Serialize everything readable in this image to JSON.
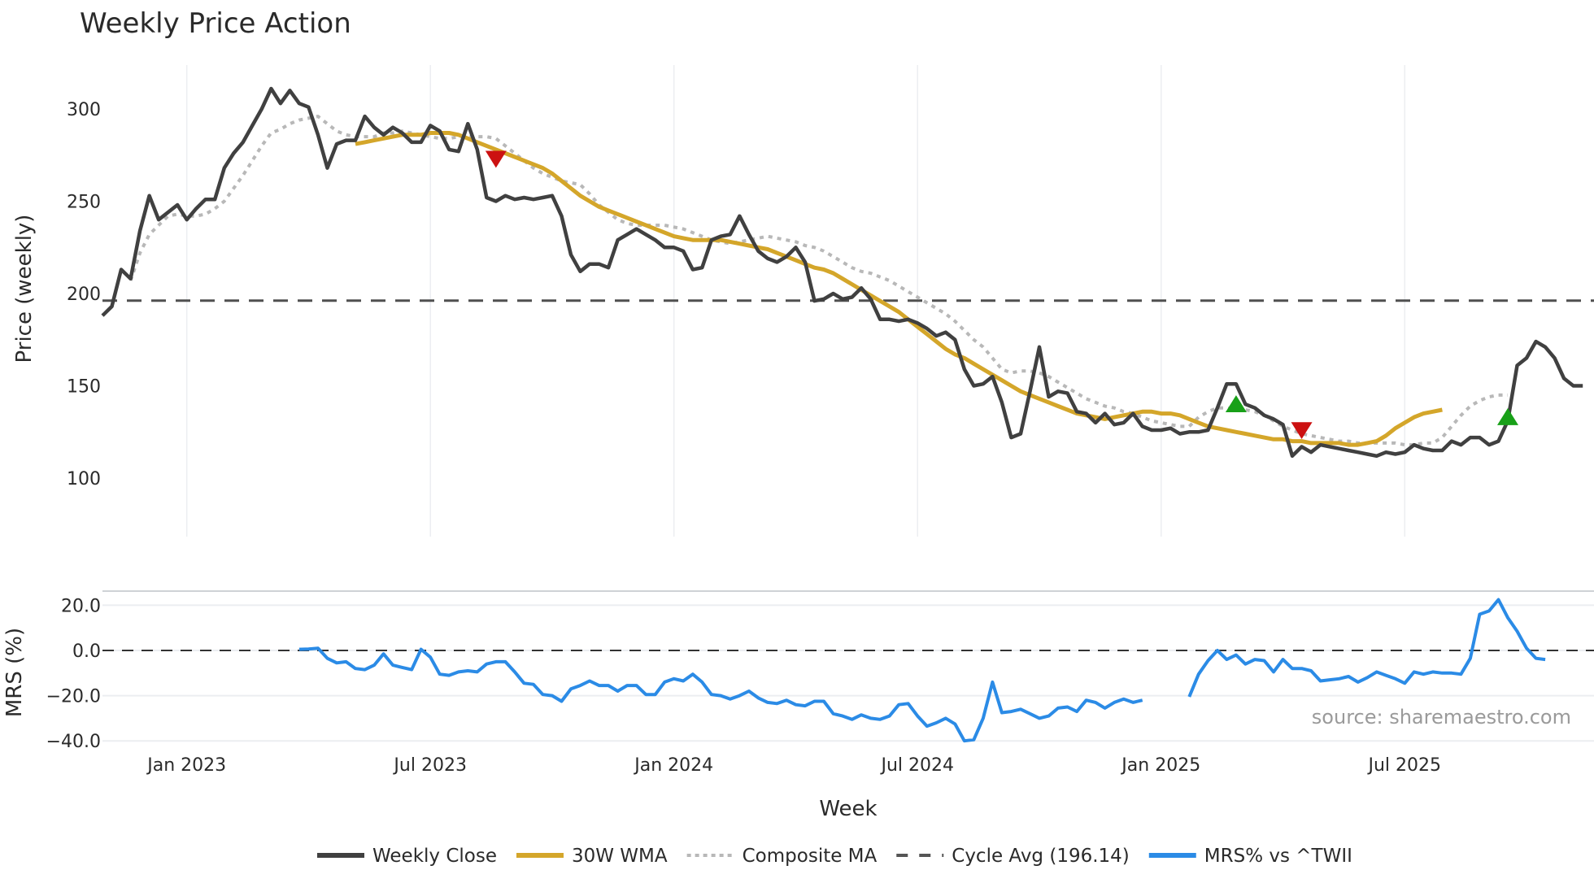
{
  "chart_data": {
    "type": "line",
    "title": "Weekly Price Action",
    "xlabel": "Week",
    "source_note": "source: sharemaestro.com",
    "x_ticks": [
      "Jan 2023",
      "Jul 2023",
      "Jan 2024",
      "Jul 2024",
      "Jan 2025",
      "Jul 2025"
    ],
    "panels": [
      {
        "name": "price",
        "ylabel": "Price (weekly)",
        "ylim": [
          100,
          320
        ],
        "y_ticks": [
          100,
          150,
          200,
          250,
          300
        ],
        "grid": true
      },
      {
        "name": "mrs",
        "ylabel": "MRS (%)",
        "ylim": [
          -42,
          27
        ],
        "y_ticks": [
          "20.0",
          "0.0",
          "−20.0",
          "−40.0"
        ],
        "y_tick_values": [
          20,
          0,
          -20,
          -40
        ],
        "grid": true
      }
    ],
    "x_start_week_offset": -9,
    "weeks_per_tick": 26,
    "series": [
      {
        "name": "Weekly Close",
        "panel": "price",
        "color": "#404040",
        "style": "solid",
        "start_index": 0,
        "values": [
          188,
          193,
          213,
          208,
          234,
          253,
          240,
          244,
          248,
          240,
          246,
          251,
          251,
          268,
          276,
          282,
          291,
          300,
          311,
          303,
          310,
          303,
          301,
          286,
          268,
          281,
          283,
          283,
          296,
          290,
          286,
          290,
          287,
          282,
          282,
          291,
          288,
          278,
          277,
          292,
          278,
          252,
          250,
          253,
          251,
          252,
          251,
          252,
          253,
          242,
          221,
          212,
          216,
          216,
          214,
          229,
          232,
          235,
          232,
          229,
          225,
          225,
          223,
          213,
          214,
          229,
          231,
          232,
          242,
          232,
          223,
          219,
          217,
          220,
          225,
          217,
          196,
          197,
          200,
          197,
          198,
          203,
          197,
          186,
          186,
          185,
          186,
          184,
          181,
          177,
          179,
          175,
          159,
          150,
          151,
          155,
          141,
          122,
          124,
          147,
          171,
          144,
          147,
          146,
          136,
          135,
          130,
          135,
          129,
          130,
          135,
          128,
          126,
          126,
          127,
          124,
          125,
          125,
          126,
          138,
          151,
          151,
          140,
          138,
          134,
          132,
          129,
          112,
          117,
          114,
          118,
          117,
          116,
          115,
          114,
          113,
          112,
          114,
          113,
          114,
          118,
          116,
          115,
          115,
          120,
          118,
          122,
          122,
          118,
          120,
          131,
          161,
          165,
          174,
          171,
          165,
          154,
          150,
          150
        ]
      },
      {
        "name": "30W WMA",
        "panel": "price",
        "color": "#d4a62a",
        "style": "solid",
        "start_index": 27,
        "values": [
          281,
          282,
          283,
          284,
          285,
          286,
          286,
          286,
          287,
          287,
          287,
          286,
          284,
          282,
          280,
          278,
          276,
          274,
          272,
          270,
          268,
          265,
          261,
          257,
          253,
          250,
          247,
          245,
          243,
          241,
          239,
          237,
          235,
          233,
          231,
          230,
          229,
          229,
          229,
          229,
          228,
          227,
          226,
          225,
          224,
          222,
          220,
          218,
          216,
          214,
          213,
          211,
          208,
          205,
          202,
          199,
          196,
          193,
          190,
          186,
          182,
          178,
          174,
          170,
          167,
          165,
          162,
          159,
          156,
          153,
          150,
          147,
          145,
          143,
          141,
          139,
          137,
          135,
          134,
          133,
          132,
          133,
          134,
          135,
          136,
          136,
          135,
          135,
          134,
          132,
          130,
          128,
          127,
          126,
          125,
          124,
          123,
          122,
          121,
          121,
          120,
          120,
          119,
          119,
          119,
          119,
          118,
          118,
          119,
          120,
          123,
          127,
          130,
          133,
          135,
          136,
          137
        ]
      },
      {
        "name": "Composite MA",
        "panel": "price",
        "color": "#b8b8b8",
        "style": "dotted",
        "start_index": 3,
        "values": [
          207,
          222,
          232,
          237,
          242,
          243,
          242,
          242,
          243,
          246,
          250,
          257,
          264,
          272,
          280,
          287,
          289,
          292,
          294,
          295,
          296,
          292,
          288,
          286,
          285,
          285,
          285,
          287,
          287,
          288,
          287,
          286,
          285,
          284,
          284,
          285,
          285,
          285,
          285,
          284,
          280,
          276,
          272,
          268,
          265,
          263,
          261,
          260,
          259,
          254,
          248,
          244,
          240,
          238,
          237,
          237,
          237,
          237,
          236,
          235,
          233,
          231,
          229,
          228,
          227,
          228,
          229,
          230,
          231,
          230,
          229,
          228,
          226,
          225,
          223,
          220,
          217,
          214,
          212,
          211,
          209,
          207,
          204,
          201,
          198,
          195,
          192,
          189,
          185,
          180,
          175,
          171,
          165,
          159,
          157,
          158,
          158,
          157,
          155,
          152,
          149,
          146,
          143,
          141,
          139,
          138,
          136,
          135,
          133,
          131,
          130,
          129,
          128,
          128,
          133,
          136,
          138,
          138,
          137,
          137,
          136,
          134,
          131,
          128,
          126,
          124,
          123,
          122,
          121,
          120,
          120,
          119,
          119,
          119,
          119,
          119,
          118,
          118,
          119,
          119,
          122,
          128,
          134,
          139,
          142,
          144,
          145,
          145
        ]
      },
      {
        "name": "Cycle Avg (196.14)",
        "panel": "price",
        "color": "#505050",
        "style": "dashed",
        "value": 196.14
      },
      {
        "name": "MRS% vs ^TWII",
        "panel": "mrs",
        "color": "#2b8be6",
        "style": "solid",
        "segments": [
          {
            "start_index": 21,
            "values": [
              0.5,
              0.6,
              1.0,
              -3.5,
              -5.5,
              -5.0,
              -8.0,
              -8.5,
              -6.5,
              -1.5,
              -6.5,
              -7.5,
              -8.5,
              0.5,
              -3.0,
              -10.5,
              -11.0,
              -9.5,
              -9.0,
              -9.5,
              -6.0,
              -5.0,
              -5.0,
              -9.5,
              -14.5,
              -15.0,
              -19.5,
              -20.0,
              -22.5,
              -17.0,
              -15.5,
              -13.5,
              -15.5,
              -15.5,
              -18.0,
              -15.5,
              -15.5,
              -19.5,
              -19.5,
              -14.0,
              -12.5,
              -13.5,
              -10.5,
              -14.0,
              -19.5,
              -20.0,
              -21.5,
              -20.0,
              -18.0,
              -21.0,
              -23.0,
              -23.5,
              -22.0,
              -24.0,
              -24.5,
              -22.5,
              -22.5,
              -28.0,
              -29.0,
              -30.5,
              -28.5,
              -30.0,
              -30.5,
              -29.0,
              -24.0,
              -23.5,
              -29.0,
              -33.5,
              -32.0,
              -30.0,
              -32.5,
              -40.0,
              -39.5,
              -30.0,
              -14.0,
              -27.5,
              -27.0,
              -26.0,
              -28.0,
              -30.0,
              -29.0,
              -25.5,
              -25.0,
              -27.0,
              -22.0,
              -23.0,
              -25.5,
              -23.0,
              -21.5,
              -23.0,
              -22.0
            ]
          },
          {
            "start_index": 116,
            "values": [
              -20.5,
              -10.5,
              -4.5,
              0.0,
              -4.0,
              -2.0,
              -6.0,
              -4.0,
              -4.5,
              -9.5,
              -4.0,
              -8.0,
              -8.0,
              -9.0,
              -13.5,
              -13.0,
              -12.5,
              -11.5,
              -14.0,
              -12.0,
              -9.5,
              -11.0,
              -12.5,
              -14.5,
              -9.5,
              -10.5,
              -9.5,
              -10.0,
              -10.0,
              -10.5,
              -3.5,
              16.0,
              17.5,
              22.5,
              14.5,
              8.5,
              1.0,
              -3.5,
              -4.0
            ]
          }
        ]
      },
      {
        "name": "MRS zero line",
        "panel": "mrs",
        "color": "#333333",
        "style": "dashed",
        "value": 0
      }
    ],
    "markers": [
      {
        "type": "sell",
        "shape": "triangle-down",
        "color": "#cc1111",
        "index": 42,
        "value": 273
      },
      {
        "type": "buy",
        "shape": "triangle-up",
        "color": "#18a018",
        "index": 121,
        "value": 140
      },
      {
        "type": "sell",
        "shape": "triangle-down",
        "color": "#cc1111",
        "index": 128,
        "value": 126
      },
      {
        "type": "buy",
        "shape": "triangle-up",
        "color": "#18a018",
        "index": 150,
        "value": 133
      }
    ],
    "legend": {
      "position": "bottom-center",
      "entries": [
        {
          "label": "Weekly Close",
          "color": "#404040",
          "style": "solid"
        },
        {
          "label": "30W WMA",
          "color": "#d4a62a",
          "style": "solid"
        },
        {
          "label": "Composite MA",
          "color": "#b8b8b8",
          "style": "dotted"
        },
        {
          "label": "Cycle Avg (196.14)",
          "color": "#555555",
          "style": "dashed"
        },
        {
          "label": "MRS% vs ^TWII",
          "color": "#2b8be6",
          "style": "solid"
        }
      ]
    }
  }
}
